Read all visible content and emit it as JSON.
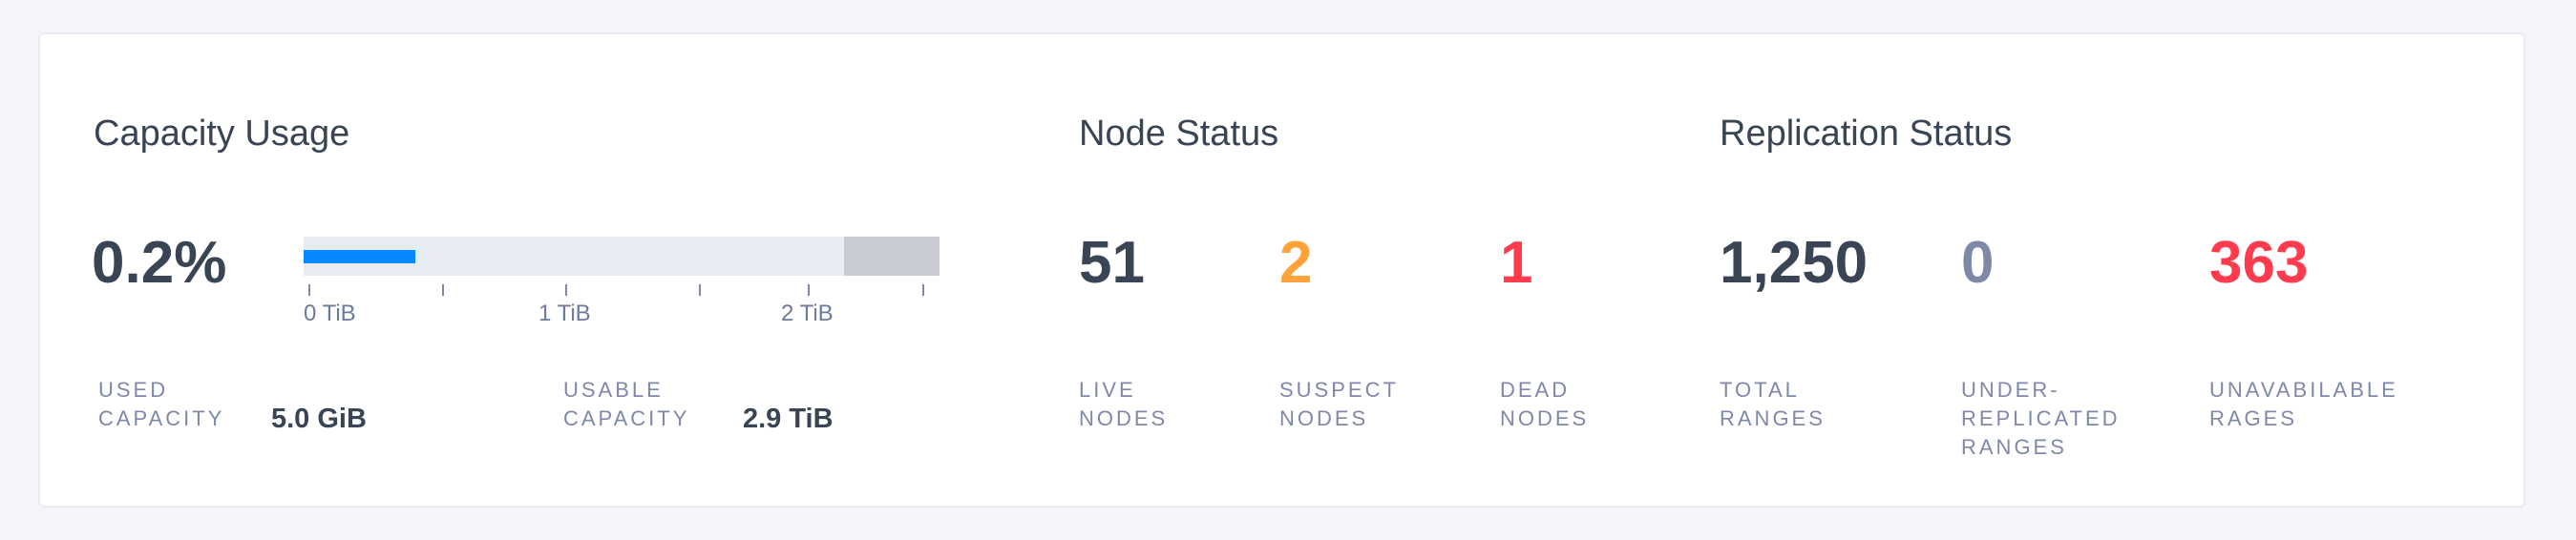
{
  "colors": {
    "text": "#394455",
    "label": "#7e89a9",
    "suspect": "#ffa23a",
    "dead": "#ff3b4e",
    "zero": "#7e89a9",
    "bar_used": "#0788ff",
    "bar_bg": "#e7ecf3",
    "bar_reserved": "#c8cbd4"
  },
  "capacity": {
    "title": "Capacity Usage",
    "percent": "0.2%",
    "bar": {
      "used_fill_pct": 17.5,
      "reserved_start_pct": 85
    },
    "axis_labels": [
      "0 TiB",
      "1 TiB",
      "2 TiB"
    ],
    "used_label": "USED\nCAPACITY",
    "used_value": "5.0 GiB",
    "usable_label": "USABLE\nCAPACITY",
    "usable_value": "2.9 TiB"
  },
  "nodes": {
    "title": "Node Status",
    "live": {
      "value": "51",
      "label": "LIVE\nNODES"
    },
    "suspect": {
      "value": "2",
      "label": "SUSPECT\nNODES"
    },
    "dead": {
      "value": "1",
      "label": "DEAD\nNODES"
    }
  },
  "replication": {
    "title": "Replication Status",
    "total": {
      "value": "1,250",
      "label": "TOTAL\nRANGES"
    },
    "under": {
      "value": "0",
      "label": "UNDER-\nREPLICATED\nRANGES"
    },
    "unavailable": {
      "value": "363",
      "label": "UNAVABILABLE\nRAGES"
    }
  }
}
